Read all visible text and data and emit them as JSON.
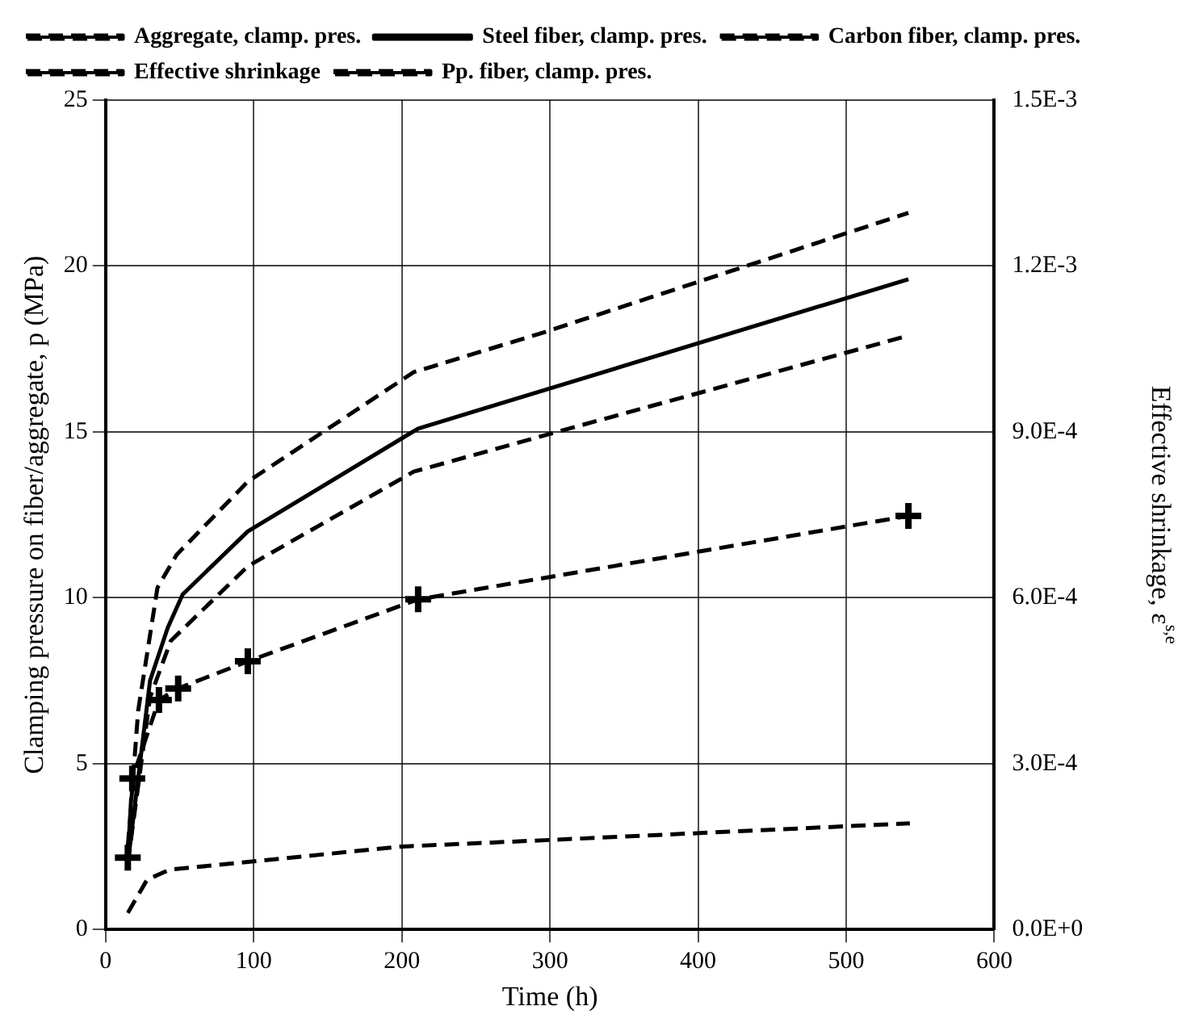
{
  "chart_data": {
    "type": "line",
    "xlabel": "Time (h)",
    "ylabel": "Clamping pressure on fiber/aggregate, p (MPa)",
    "y2label": "Effective shrinkage, ε$^{s,e}$",
    "xlim": [
      0,
      600
    ],
    "xticks": [
      0,
      100,
      200,
      300,
      400,
      500,
      600
    ],
    "ylim": [
      0,
      25
    ],
    "yticks": [
      0,
      5,
      10,
      15,
      20,
      25
    ],
    "y2lim": [
      0,
      0.0015
    ],
    "y2ticks": [
      {
        "value": 0,
        "label": "0.0E+0"
      },
      {
        "value": 0.0003,
        "label": "3.0E-4"
      },
      {
        "value": 0.0006,
        "label": "6.0E-4"
      },
      {
        "value": 0.0009,
        "label": "9.0E-4"
      },
      {
        "value": 0.0012,
        "label": "1.2E-3"
      },
      {
        "value": 0.0015,
        "label": "1.5E-3"
      }
    ],
    "grid": true,
    "legend": "top left",
    "series": [
      {
        "name": "Aggregate, clamp. pres.",
        "color": "#000000",
        "line_style": "dashed",
        "marker": "none",
        "x": [
          15,
          22,
          35,
          48,
          96,
          208,
          296,
          542
        ],
        "values": [
          2.5,
          6.6,
          10.3,
          11.3,
          13.5,
          16.8,
          18.0,
          21.6
        ]
      },
      {
        "name": "Steel fiber, clamp. pres.",
        "color": "#000000",
        "line_style": "solid",
        "marker": "none",
        "x": [
          15,
          30,
          42,
          52,
          96,
          211,
          542
        ],
        "values": [
          2,
          7.5,
          9.1,
          10.1,
          12.0,
          15.1,
          19.6
        ]
      },
      {
        "name": "Carbon fiber, clamp. pres.",
        "color": "#000000",
        "line_style": "dashed",
        "marker": "none",
        "x": [
          15,
          30,
          44,
          96,
          208,
          317,
          542
        ],
        "values": [
          2,
          7,
          8.7,
          10.95,
          13.8,
          15.15,
          17.9
        ]
      },
      {
        "name": "Effective shrinkage",
        "color": "#000000",
        "line_style": "dashed",
        "marker": "cross",
        "axis": "y2",
        "x": [
          15,
          18,
          36,
          49,
          96,
          211,
          542
        ],
        "values": [
          0.00013,
          0.000273,
          0.000415,
          0.000436,
          0.000485,
          0.000597,
          0.000748
        ]
      },
      {
        "name": "Pp. fiber, clamp. pres.",
        "color": "#000000",
        "line_style": "dashed",
        "marker": "none",
        "x": [
          15,
          28,
          43,
          200,
          301,
          543
        ],
        "values": [
          0.5,
          1.5,
          1.8,
          2.5,
          2.7,
          3.2
        ]
      }
    ]
  }
}
